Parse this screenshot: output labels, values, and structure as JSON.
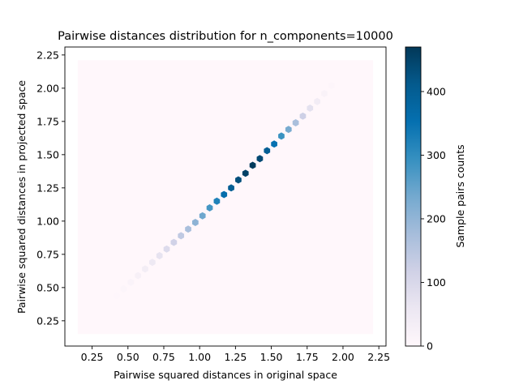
{
  "chart_data": {
    "type": "hexbin",
    "title": "Pairwise distances distribution for n_components=10000",
    "xlabel": "Pairwise squared distances in original space",
    "ylabel": "Pairwise squared distances in projected space",
    "xlim": [
      0.06,
      2.3
    ],
    "ylim": [
      0.06,
      2.31
    ],
    "xticks": [
      0.25,
      0.5,
      0.75,
      1.0,
      1.25,
      1.5,
      1.75,
      2.0,
      2.25
    ],
    "xtick_labels": [
      "0.25",
      "0.50",
      "0.75",
      "1.00",
      "1.25",
      "1.50",
      "1.75",
      "2.00",
      "2.25"
    ],
    "yticks": [
      0.25,
      0.5,
      0.75,
      1.0,
      1.25,
      1.5,
      1.75,
      2.0,
      2.25
    ],
    "ytick_labels": [
      "0.25",
      "0.50",
      "0.75",
      "1.00",
      "1.25",
      "1.50",
      "1.75",
      "2.00",
      "2.25"
    ],
    "data_extent": {
      "x": [
        0.15,
        2.21
      ],
      "y": [
        0.15,
        2.21
      ]
    },
    "colormap": "PuBu",
    "background_color": "#fff7fb",
    "grid": false,
    "gridsize": 50,
    "colorbar": {
      "label": "Sample pairs counts",
      "range": [
        0,
        470
      ],
      "ticks": [
        0,
        100,
        200,
        300,
        400
      ],
      "tick_labels": [
        "0",
        "100",
        "200",
        "300",
        "400"
      ]
    },
    "bins": [
      {
        "x": 0.42,
        "y": 0.44,
        "count": 3
      },
      {
        "x": 0.47,
        "y": 0.49,
        "count": 8
      },
      {
        "x": 0.52,
        "y": 0.54,
        "count": 15
      },
      {
        "x": 0.57,
        "y": 0.59,
        "count": 25
      },
      {
        "x": 0.62,
        "y": 0.64,
        "count": 38
      },
      {
        "x": 0.67,
        "y": 0.69,
        "count": 52
      },
      {
        "x": 0.72,
        "y": 0.74,
        "count": 70
      },
      {
        "x": 0.77,
        "y": 0.79,
        "count": 90
      },
      {
        "x": 0.82,
        "y": 0.84,
        "count": 115
      },
      {
        "x": 0.87,
        "y": 0.89,
        "count": 140
      },
      {
        "x": 0.92,
        "y": 0.94,
        "count": 170
      },
      {
        "x": 0.97,
        "y": 0.99,
        "count": 205
      },
      {
        "x": 1.02,
        "y": 1.04,
        "count": 240
      },
      {
        "x": 1.07,
        "y": 1.1,
        "count": 280
      },
      {
        "x": 1.12,
        "y": 1.15,
        "count": 320
      },
      {
        "x": 1.17,
        "y": 1.2,
        "count": 360
      },
      {
        "x": 1.22,
        "y": 1.25,
        "count": 400
      },
      {
        "x": 1.27,
        "y": 1.31,
        "count": 430
      },
      {
        "x": 1.32,
        "y": 1.36,
        "count": 455
      },
      {
        "x": 1.37,
        "y": 1.42,
        "count": 465
      },
      {
        "x": 1.42,
        "y": 1.47,
        "count": 440
      },
      {
        "x": 1.47,
        "y": 1.53,
        "count": 400
      },
      {
        "x": 1.52,
        "y": 1.58,
        "count": 350
      },
      {
        "x": 1.57,
        "y": 1.64,
        "count": 290
      },
      {
        "x": 1.62,
        "y": 1.69,
        "count": 230
      },
      {
        "x": 1.67,
        "y": 1.74,
        "count": 170
      },
      {
        "x": 1.72,
        "y": 1.79,
        "count": 120
      },
      {
        "x": 1.77,
        "y": 1.85,
        "count": 75
      },
      {
        "x": 1.82,
        "y": 1.9,
        "count": 40
      },
      {
        "x": 1.87,
        "y": 1.96,
        "count": 18
      },
      {
        "x": 1.92,
        "y": 2.02,
        "count": 6
      }
    ]
  }
}
